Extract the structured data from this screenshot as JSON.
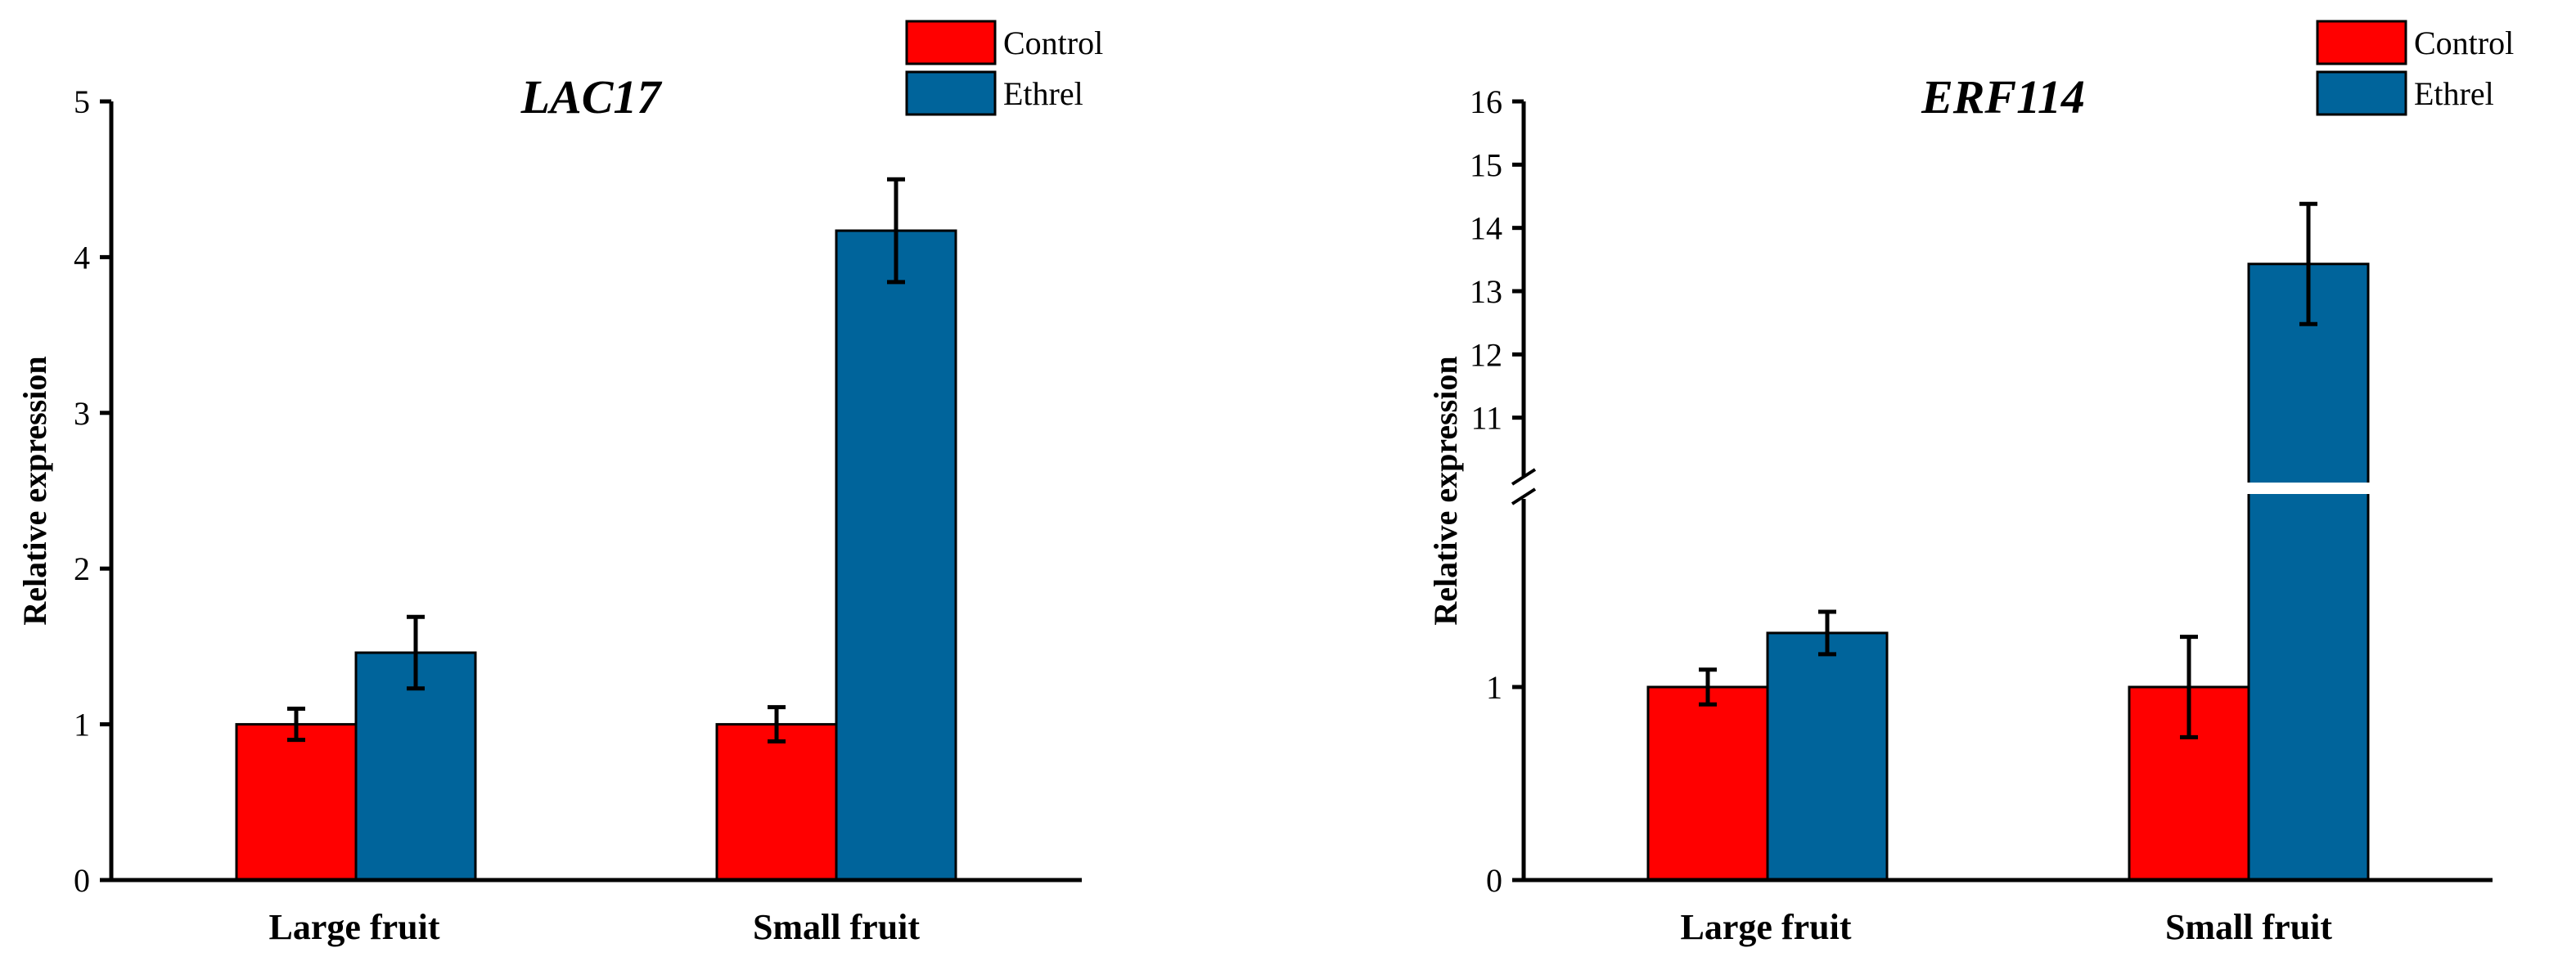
{
  "chart_data": [
    {
      "type": "bar",
      "title": "LAC17",
      "xlabel": "",
      "ylabel": "Relative expression",
      "categories": [
        "Large fruit",
        "Small fruit"
      ],
      "ylim": [
        0,
        5
      ],
      "yticks": [
        "0",
        "1",
        "2",
        "3",
        "4",
        "5"
      ],
      "series": [
        {
          "name": "Control",
          "color": "#ff0000",
          "values": [
            1.0,
            1.0
          ],
          "errors": [
            0.1,
            0.11
          ]
        },
        {
          "name": "Ethrel",
          "color": "#00649b",
          "values": [
            1.46,
            4.17
          ],
          "errors": [
            0.23,
            0.33
          ]
        }
      ],
      "legend": "top-right"
    },
    {
      "type": "bar",
      "title": "ERF114",
      "xlabel": "",
      "ylabel": "Relative expression",
      "categories": [
        "Large fruit",
        "Small fruit"
      ],
      "axis_break": true,
      "lower_range": [
        0,
        2
      ],
      "upper_range": [
        10,
        16
      ],
      "yticks_lower": [
        "0",
        "1"
      ],
      "yticks_upper": [
        "11",
        "12",
        "13",
        "14",
        "15",
        "16"
      ],
      "series": [
        {
          "name": "Control",
          "color": "#ff0000",
          "values": [
            1.0,
            1.0
          ],
          "errors": [
            0.09,
            0.26
          ]
        },
        {
          "name": "Ethrel",
          "color": "#00649b",
          "values": [
            1.28,
            13.43
          ],
          "errors": [
            0.11,
            0.95
          ]
        }
      ],
      "legend": "top-right"
    }
  ]
}
